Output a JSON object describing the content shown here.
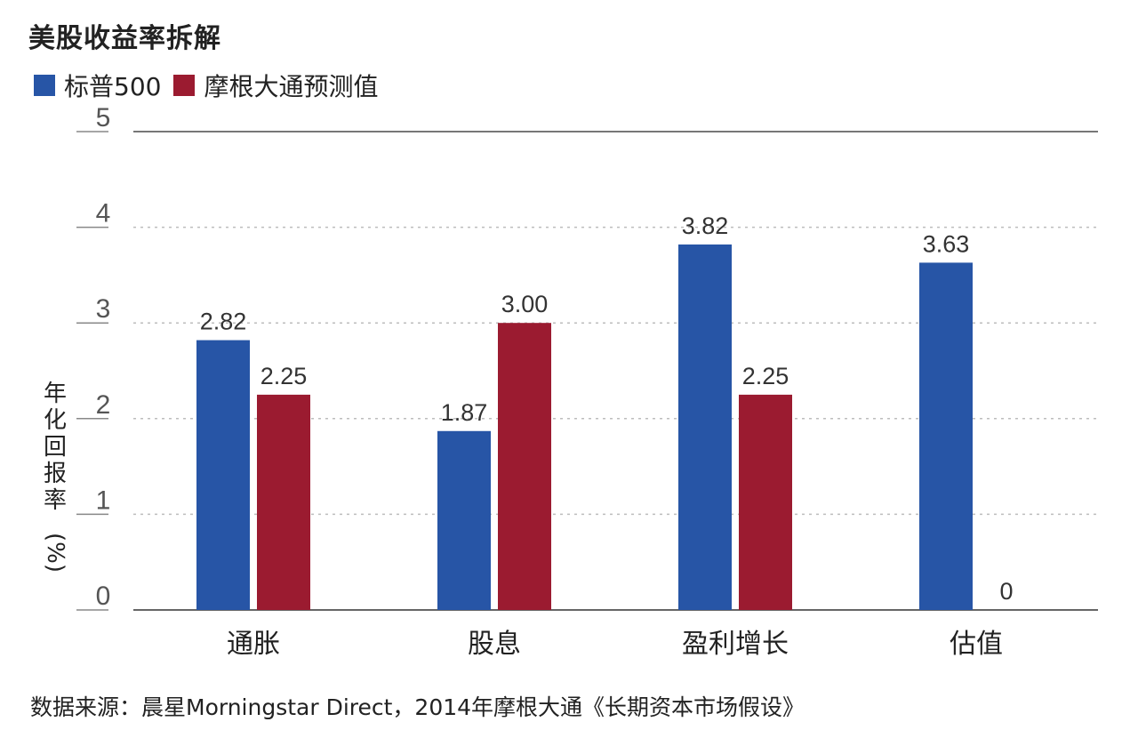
{
  "chart_data": {
    "type": "bar",
    "title": "美股收益率拆解",
    "ylabel_text": "年化回报率",
    "ylabel_unit": "(%)",
    "categories": [
      "通胀",
      "股息",
      "盈利增长",
      "估值"
    ],
    "series": [
      {
        "name": "标普500",
        "color": "#2755A6",
        "values": [
          2.82,
          1.87,
          3.82,
          3.63
        ],
        "labels": [
          "2.82",
          "1.87",
          "3.82",
          "3.63"
        ]
      },
      {
        "name": "摩根大通预测值",
        "color": "#9B1B30",
        "values": [
          2.25,
          3.0,
          2.25,
          0
        ],
        "labels": [
          "2.25",
          "3.00",
          "2.25",
          "0"
        ]
      }
    ],
    "yticks": [
      "0",
      "1",
      "2",
      "3",
      "4",
      "5"
    ],
    "ylim": [
      0,
      5
    ],
    "grid": true,
    "legend": "top-left"
  },
  "source": "数据来源：晨星Morningstar Direct，2014年摩根大通《长期资本市场假设》"
}
